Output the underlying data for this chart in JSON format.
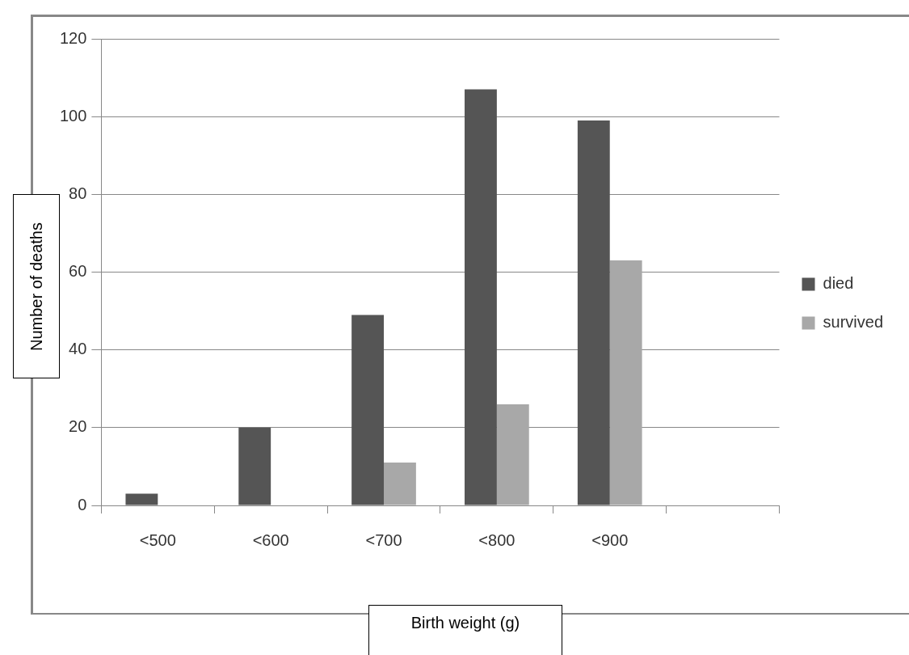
{
  "chart_data": {
    "type": "bar",
    "xlabel": "Birth weight (g)",
    "ylabel": "Number of deaths",
    "categories": [
      "<500",
      "<600",
      "<700",
      "<800",
      "<900",
      null
    ],
    "series": [
      {
        "name": "died",
        "color": "#555555",
        "values": [
          3,
          20,
          49,
          107,
          99,
          null
        ]
      },
      {
        "name": "survived",
        "color": "#a8a8a8",
        "values": [
          0,
          0,
          11,
          26,
          63,
          null
        ]
      }
    ],
    "ylim": [
      0,
      120
    ],
    "yticks": [
      0,
      20,
      40,
      60,
      80,
      100,
      120
    ],
    "grid": "y",
    "legend": "right"
  }
}
